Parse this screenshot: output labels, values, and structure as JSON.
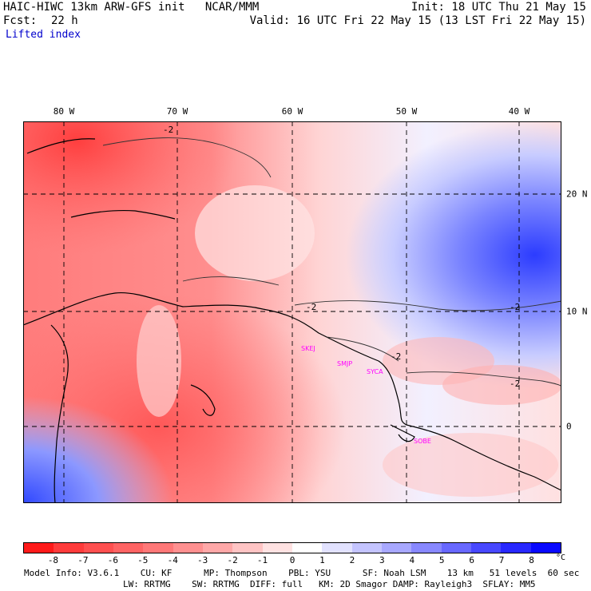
{
  "header": {
    "title": "HAIC-HIWC 13km ARW-GFS init   NCAR/MMM",
    "init": "Init: 18 UTC Thu 21 May 15",
    "fcst_label": "Fcst:",
    "fcst_value": "22 h",
    "valid": "Valid: 16 UTC Fri 22 May 15 (13 LST Fri 22 May 15)",
    "field": "Lifted index"
  },
  "axes": {
    "lon_labels": [
      "80 W",
      "70 W",
      "60 W",
      "50 W",
      "40 W"
    ],
    "lat_labels": [
      "20 N",
      "10 N",
      "0"
    ]
  },
  "map_labels": [
    "SKEJ",
    "SMJP",
    "SYCA",
    "SOBE"
  ],
  "contour_labels": [
    "-2",
    "-2",
    "-2",
    "-2",
    "-2"
  ],
  "colorbar": {
    "ticks": [
      "-8",
      "-7",
      "-6",
      "-5",
      "-4",
      "-3",
      "-2",
      "-1",
      "0",
      "1",
      "2",
      "3",
      "4",
      "5",
      "6",
      "7",
      "8"
    ],
    "unit": "°C",
    "colors": [
      "#ff1a1a",
      "#ff3b3b",
      "#ff5050",
      "#ff6464",
      "#ff7878",
      "#ff9090",
      "#ffa8a8",
      "#ffc4c4",
      "#ffe2e2",
      "#ffffff",
      "#e2e2ff",
      "#c4c4ff",
      "#a8a8ff",
      "#8888ff",
      "#6868ff",
      "#4848ff",
      "#2828ff",
      "#0808ff"
    ]
  },
  "footer": {
    "line1": "Model Info: V3.6.1    CU: KF      MP: Thompson    PBL: YSU      SF: Noah LSM    13 km   51 levels  60 sec",
    "line2": "LW: RRTMG    SW: RRTMG  DIFF: full   KM: 2D Smagor DAMP: Rayleigh3  SFLAY: MM5"
  }
}
